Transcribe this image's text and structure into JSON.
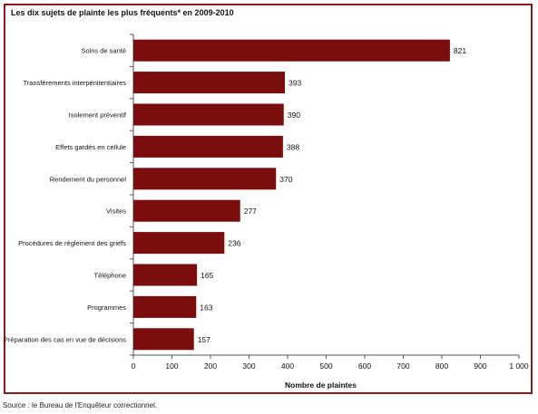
{
  "chart_data": {
    "type": "bar",
    "orientation": "horizontal",
    "title": "Les dix sujets de plainte les plus fréquents* en 2009-2010",
    "xlabel": "Nombre de plaintes",
    "ylabel": "",
    "categories": [
      "Soins de santé",
      "Transfèrements interpénitentiaires",
      "Isolement préventif",
      "Effets gardés en cellule",
      "Rendement du personnel",
      "Visites",
      "Procédures de règlement des griefs",
      "Téléphone",
      "Programmes",
      "Préparation des cas en vue de décisions"
    ],
    "values": [
      821,
      393,
      390,
      388,
      370,
      277,
      236,
      165,
      163,
      157
    ],
    "xlim": [
      0,
      1000
    ],
    "xticks": [
      "0",
      "100",
      "200",
      "300",
      "400",
      "500",
      "600",
      "700",
      "800",
      "900",
      "1 000"
    ],
    "grid": false,
    "bar_color": "#7b0d0d",
    "frame_color": "#8b1a1a"
  },
  "source": "Source : le Bureau de l'Enquêteur correctionnel."
}
